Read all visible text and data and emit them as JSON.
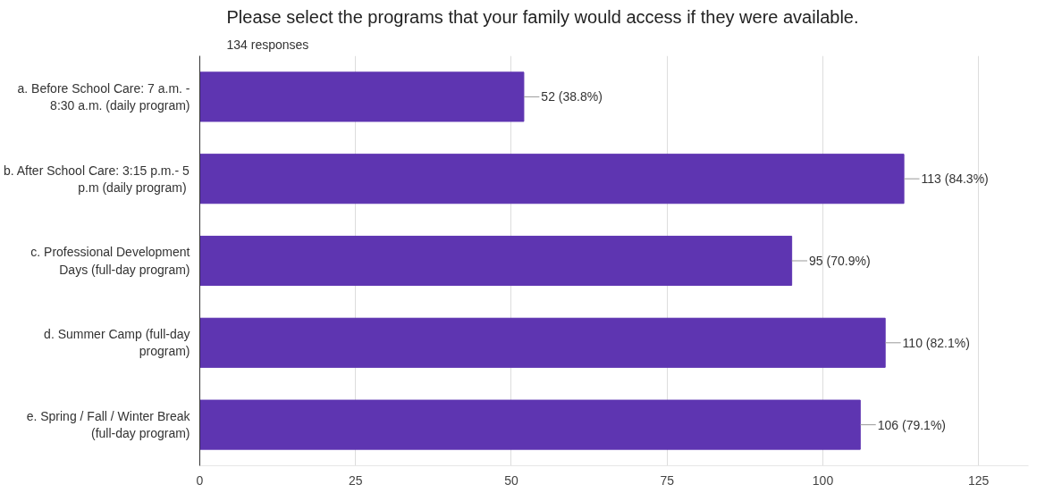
{
  "chart_data": {
    "type": "bar",
    "orientation": "horizontal",
    "title": "Please select the programs that your family would access if they were available.",
    "subtitle": "134 responses",
    "categories": [
      "a. Before School Care: 7 a.m. -\n8:30 a.m. (daily program)",
      "b. After School Care: 3:15 p.m.- 5\np.m  (daily program)",
      "c. Professional Development\nDays (full-day program)",
      "d. Summer Camp (full-day\nprogram)",
      "e. Spring / Fall / Winter Break\n(full-day program)"
    ],
    "values": [
      52,
      113,
      95,
      110,
      106
    ],
    "value_labels": [
      "52 (38.8%)",
      "113 (84.3%)",
      "95 (70.9%)",
      "110 (82.1%)",
      "106 (79.1%)"
    ],
    "color": "#5e35b1",
    "xlim": [
      0,
      133
    ],
    "xticks": [
      0,
      25,
      50,
      75,
      100,
      125
    ],
    "grid": "x"
  }
}
